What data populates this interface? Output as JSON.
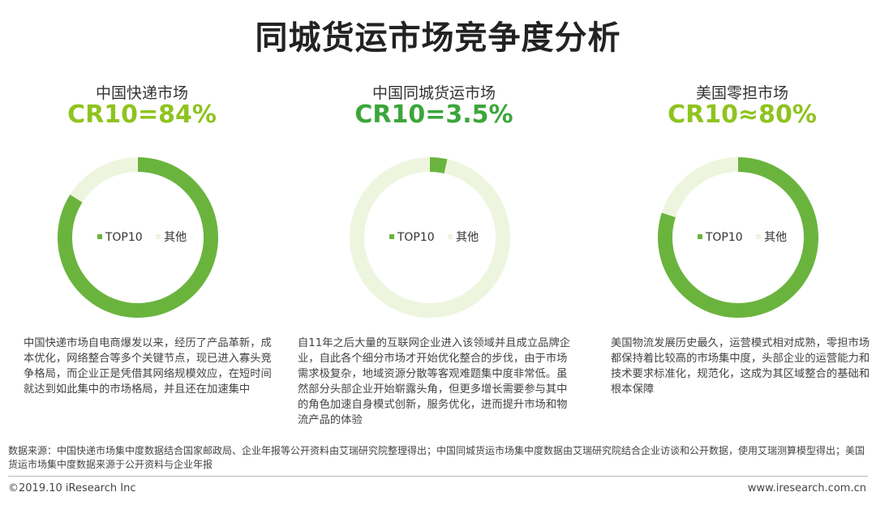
{
  "title": "同城货运市场竞争度分析",
  "legend_labels": {
    "top10": "TOP10",
    "others": "其他"
  },
  "colors": {
    "top10": "#6ab43e",
    "others": "#eef5df",
    "cr_text_light": "#8fc31f",
    "cr_text_dark": "#3aa63a"
  },
  "markets": [
    {
      "name": "中国快递市场",
      "cr_label": "CR10=84%",
      "description": "中国快递市场自电商爆发以来，经历了产品革新，成本优化，网络整合等多个关键节点，现已进入寡头竞争格局，而企业正是凭借其网络规模效应，在短时间就达到如此集中的市场格局，并且还在加速集中"
    },
    {
      "name": "中国同城货运市场",
      "cr_label": "CR10=3.5%",
      "description": "自11年之后大量的互联网企业进入该领域并且成立品牌企业，自此各个细分市场才开始优化整合的步伐，由于市场需求极复杂，地域资源分散等客观难题集中度非常低。虽然部分头部企业开始崭露头角，但更多增长需要参与其中的角色加速自身模式创新，服务优化，进而提升市场和物流产品的体验"
    },
    {
      "name": "美国零担市场",
      "cr_label": "CR10≈80%",
      "description": "美国物流发展历史最久，运营模式相对成熟，零担市场都保持着比较高的市场集中度，头部企业的运营能力和技术要求标准化，规范化，这成为其区域整合的基础和根本保障"
    }
  ],
  "chart_data": [
    {
      "type": "pie",
      "variant": "donut",
      "title": "中国快递市场",
      "subtitle": "CR10=84%",
      "categories": [
        "TOP10",
        "其他"
      ],
      "values": [
        84,
        16
      ],
      "legend": "center"
    },
    {
      "type": "pie",
      "variant": "donut",
      "title": "中国同城货运市场",
      "subtitle": "CR10=3.5%",
      "categories": [
        "TOP10",
        "其他"
      ],
      "values": [
        3.5,
        96.5
      ],
      "legend": "center"
    },
    {
      "type": "pie",
      "variant": "donut",
      "title": "美国零担市场",
      "subtitle": "CR10≈80%",
      "categories": [
        "TOP10",
        "其他"
      ],
      "values": [
        80,
        20
      ],
      "legend": "center"
    }
  ],
  "footer": {
    "source": "数据来源：中国快递市场集中度数据结合国家邮政局、企业年报等公开资料由艾瑞研究院整理得出；中国同城货运市场集中度数据由艾瑞研究院结合企业访谈和公开数据，使用艾瑞测算模型得出；美国货运市场集中度数据来源于公开资料与企业年报",
    "copyright": "©2019.10 iResearch Inc",
    "website": "www.iresearch.com.cn"
  }
}
